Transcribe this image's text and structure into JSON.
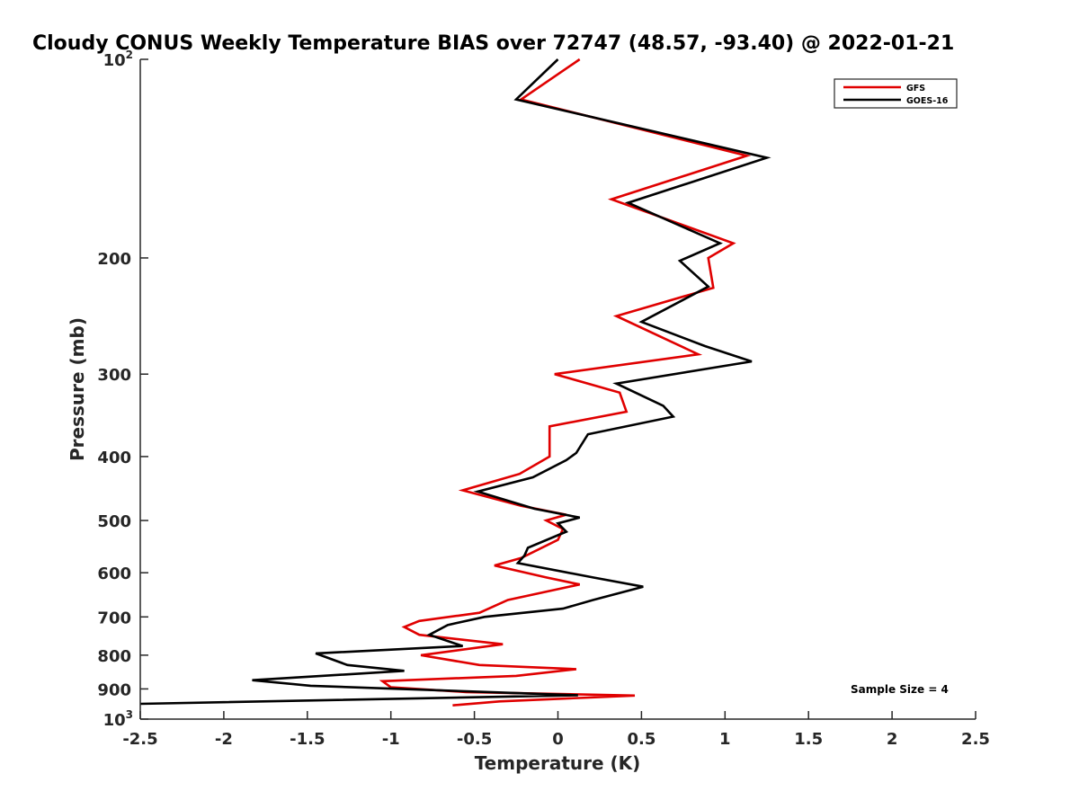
{
  "chart_data": {
    "type": "line",
    "title": "Cloudy CONUS Weekly Temperature BIAS over 72747 (48.57, -93.40) @ 2022-01-21",
    "xlabel": "Temperature (K)",
    "ylabel": "Pressure (mb)",
    "xlim": [
      -2.5,
      2.5
    ],
    "ylim": [
      100,
      1000
    ],
    "y_scale": "log",
    "y_reversed": true,
    "grid": false,
    "legend_position": "top-right",
    "x_ticks": [
      "-2.5",
      "-2",
      "-1.5",
      "-1",
      "-0.5",
      "0",
      "0.5",
      "1",
      "1.5",
      "2",
      "2.5"
    ],
    "x_tick_values": [
      -2.5,
      -2,
      -1.5,
      -1,
      -0.5,
      0,
      0.5,
      1,
      1.5,
      2,
      2.5
    ],
    "y_ticks": [
      {
        "value": 100,
        "base": "10",
        "exp": "2"
      },
      {
        "value": 200,
        "label": "200"
      },
      {
        "value": 300,
        "label": "300"
      },
      {
        "value": 400,
        "label": "400"
      },
      {
        "value": 500,
        "label": "500"
      },
      {
        "value": 600,
        "label": "600"
      },
      {
        "value": 700,
        "label": "700"
      },
      {
        "value": 800,
        "label": "800"
      },
      {
        "value": 900,
        "label": "900"
      },
      {
        "value": 1000,
        "base": "10",
        "exp": "3"
      }
    ],
    "annotation": "Sample Size = 4",
    "series": [
      {
        "name": "GFS",
        "color": "#e00000",
        "points": [
          [
            0.13,
            100
          ],
          [
            -0.22,
            115
          ],
          [
            1.13,
            140
          ],
          [
            0.32,
            163
          ],
          [
            1.05,
            190
          ],
          [
            0.9,
            200
          ],
          [
            0.93,
            222
          ],
          [
            0.35,
            245
          ],
          [
            0.84,
            280
          ],
          [
            -0.02,
            300
          ],
          [
            0.37,
            320
          ],
          [
            0.41,
            342
          ],
          [
            -0.05,
            360
          ],
          [
            -0.05,
            380
          ],
          [
            -0.05,
            400
          ],
          [
            -0.23,
            425
          ],
          [
            -0.57,
            450
          ],
          [
            -0.22,
            475
          ],
          [
            0.05,
            490
          ],
          [
            -0.07,
            500
          ],
          [
            0.03,
            515
          ],
          [
            0.0,
            535
          ],
          [
            -0.22,
            570
          ],
          [
            -0.38,
            585
          ],
          [
            -0.07,
            610
          ],
          [
            0.13,
            625
          ],
          [
            -0.3,
            660
          ],
          [
            -0.47,
            690
          ],
          [
            -0.83,
            710
          ],
          [
            -0.92,
            725
          ],
          [
            -0.83,
            745
          ],
          [
            -0.33,
            770
          ],
          [
            -0.82,
            800
          ],
          [
            -0.47,
            828
          ],
          [
            0.11,
            840
          ],
          [
            -0.25,
            860
          ],
          [
            -1.05,
            876
          ],
          [
            -1.0,
            895
          ],
          [
            -0.55,
            910
          ],
          [
            0.46,
            921
          ],
          [
            -0.35,
            940
          ],
          [
            -0.63,
            953
          ]
        ]
      },
      {
        "name": "GOES-16",
        "color": "#000000",
        "points": [
          [
            0.0,
            100
          ],
          [
            -0.25,
            115
          ],
          [
            1.25,
            141
          ],
          [
            0.42,
            165
          ],
          [
            0.97,
            190
          ],
          [
            0.73,
            202
          ],
          [
            0.9,
            221
          ],
          [
            0.5,
            250
          ],
          [
            0.88,
            272
          ],
          [
            1.16,
            287
          ],
          [
            0.35,
            310
          ],
          [
            0.63,
            335
          ],
          [
            0.69,
            348
          ],
          [
            0.18,
            370
          ],
          [
            0.11,
            395
          ],
          [
            0.05,
            405
          ],
          [
            -0.15,
            430
          ],
          [
            -0.48,
            452
          ],
          [
            -0.14,
            480
          ],
          [
            0.13,
            495
          ],
          [
            0.0,
            505
          ],
          [
            0.05,
            520
          ],
          [
            -0.18,
            550
          ],
          [
            -0.2,
            565
          ],
          [
            -0.24,
            580
          ],
          [
            0.21,
            610
          ],
          [
            0.51,
            630
          ],
          [
            0.21,
            660
          ],
          [
            0.03,
            680
          ],
          [
            -0.44,
            700
          ],
          [
            -0.66,
            720
          ],
          [
            -0.77,
            745
          ],
          [
            -0.57,
            775
          ],
          [
            -1.45,
            795
          ],
          [
            -1.26,
            828
          ],
          [
            -0.92,
            845
          ],
          [
            -1.83,
            873
          ],
          [
            -1.48,
            890
          ],
          [
            0.12,
            920
          ],
          [
            -2.5,
            948
          ]
        ]
      }
    ]
  }
}
